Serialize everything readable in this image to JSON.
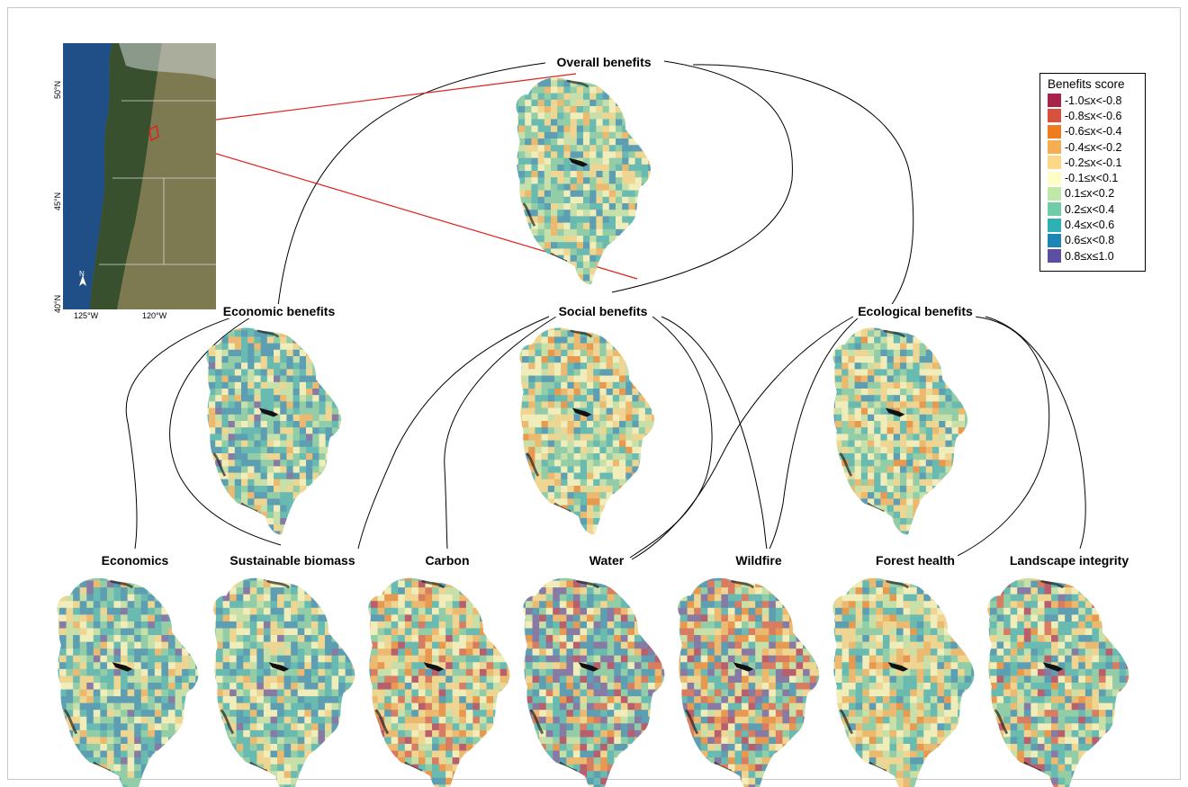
{
  "overall": {
    "title": "Overall benefits"
  },
  "groups": [
    {
      "title": "Economic benefits"
    },
    {
      "title": "Social benefits"
    },
    {
      "title": "Ecological benefits"
    }
  ],
  "indicators": [
    {
      "title": "Economics"
    },
    {
      "title": "Sustainable biomass"
    },
    {
      "title": "Carbon"
    },
    {
      "title": "Water"
    },
    {
      "title": "Wildfire"
    },
    {
      "title": "Forest health"
    },
    {
      "title": "Landscape integrity"
    }
  ],
  "legend": {
    "title": "Benefits score",
    "entries": [
      {
        "label": "-1.0≤x<-0.8",
        "color": "#a8234c"
      },
      {
        "label": "-0.8≤x<-0.6",
        "color": "#d9503d"
      },
      {
        "label": "-0.6≤x<-0.4",
        "color": "#ef7d1f"
      },
      {
        "label": "-0.4≤x<-0.2",
        "color": "#f6ae52"
      },
      {
        "label": "-0.2≤x<-0.1",
        "color": "#fbd986"
      },
      {
        "label": "-0.1≤x<0.1",
        "color": "#fdfdc4"
      },
      {
        "label": "0.1≤x<0.2",
        "color": "#bfe8a9"
      },
      {
        "label": "0.2≤x<0.4",
        "color": "#6fcca6"
      },
      {
        "label": "0.4≤x<0.6",
        "color": "#2eb1b5"
      },
      {
        "label": "0.6≤x<0.8",
        "color": "#1e85b7"
      },
      {
        "label": "0.8≤x≤1.0",
        "color": "#5c4fa2"
      }
    ]
  },
  "inset_map": {
    "lat_labels": [
      "50°N",
      "45°N",
      "40°N"
    ],
    "lon_labels": [
      "125°W",
      "120°W"
    ],
    "north_label": "N",
    "ocean_color": "#1f4f86",
    "land_color": "#7d7a52",
    "forest_color": "#38502e",
    "highlight_color": "#e0201c"
  },
  "link_color": "#000000",
  "pointer_color": "#e0201c"
}
